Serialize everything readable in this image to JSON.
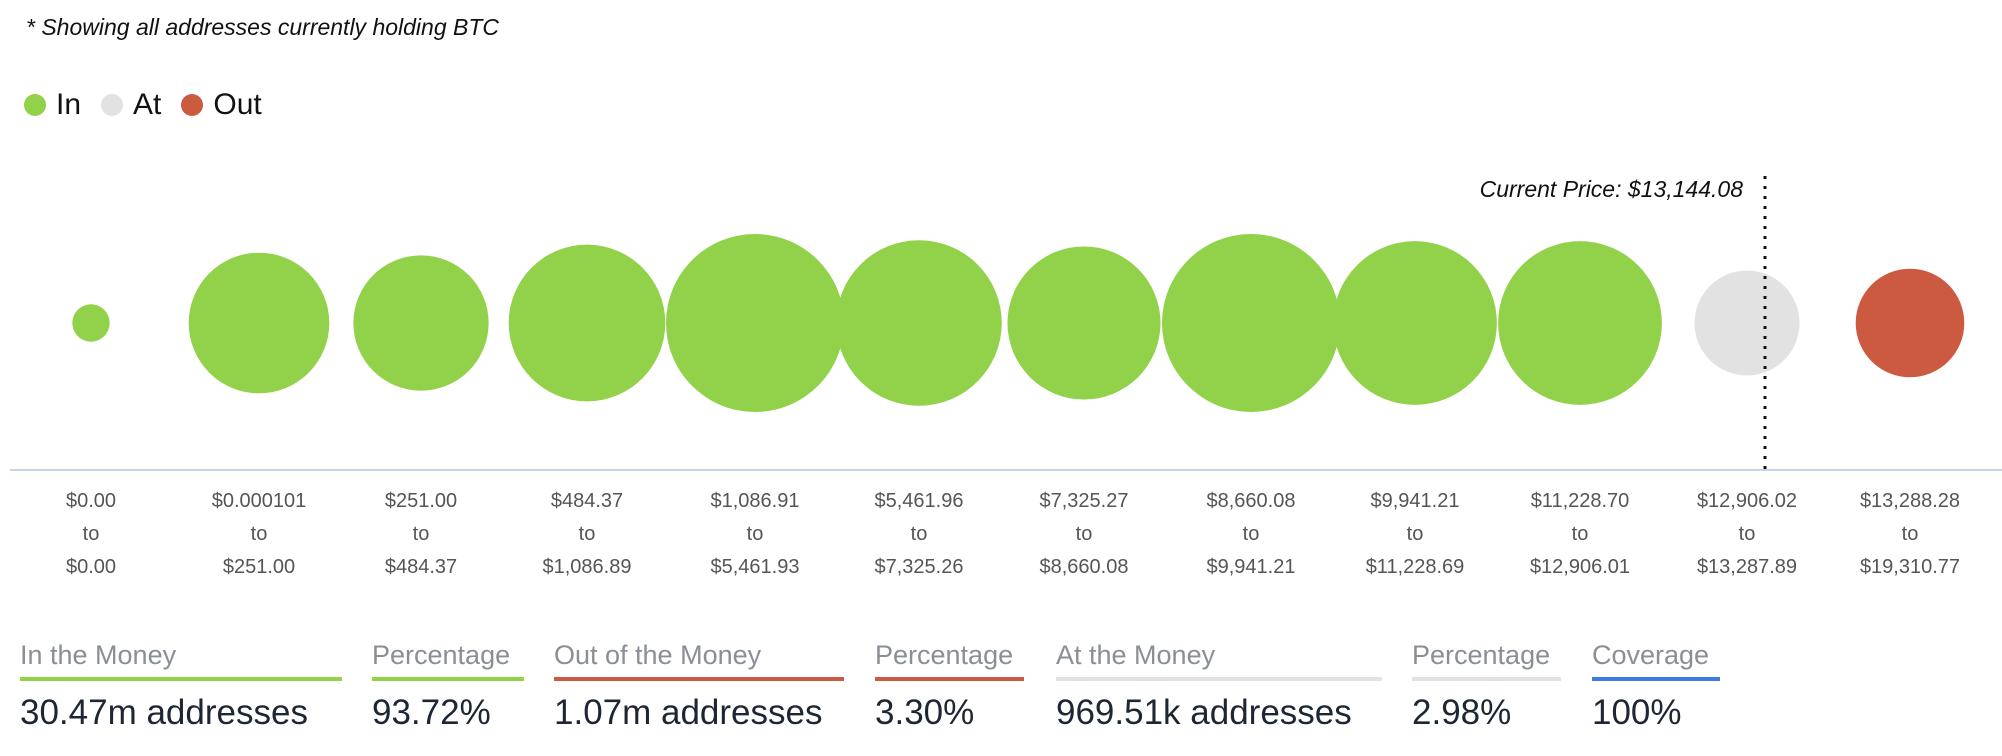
{
  "note": "* Showing all addresses currently holding BTC",
  "legend": [
    {
      "label": "In",
      "color": "#92d14a"
    },
    {
      "label": "At",
      "color": "#e2e2e2"
    },
    {
      "label": "Out",
      "color": "#cc5a41"
    }
  ],
  "chart_data": {
    "type": "bubble",
    "title": "* Showing all addresses currently holding BTC",
    "current_price_label": "Current Price: $13,144.08",
    "current_price": 13144.08,
    "colors": {
      "in": "#92d14a",
      "at": "#e2e2e2",
      "out": "#cc5a41"
    },
    "buckets": [
      {
        "from": "$0.00",
        "to": "$0.00",
        "status": "in",
        "relative_size": 0.21
      },
      {
        "from": "$0.000101",
        "to": "$251.00",
        "status": "in",
        "relative_size": 0.79
      },
      {
        "from": "$251.00",
        "to": "$484.37",
        "status": "in",
        "relative_size": 0.76
      },
      {
        "from": "$484.37",
        "to": "$1,086.89",
        "status": "in",
        "relative_size": 0.88
      },
      {
        "from": "$1,086.91",
        "to": "$5,461.93",
        "status": "in",
        "relative_size": 1.0
      },
      {
        "from": "$5,461.96",
        "to": "$7,325.26",
        "status": "in",
        "relative_size": 0.93
      },
      {
        "from": "$7,325.27",
        "to": "$8,660.08",
        "status": "in",
        "relative_size": 0.86
      },
      {
        "from": "$8,660.08",
        "to": "$9,941.21",
        "status": "in",
        "relative_size": 1.0
      },
      {
        "from": "$9,941.21",
        "to": "$11,228.69",
        "status": "in",
        "relative_size": 0.92
      },
      {
        "from": "$11,228.70",
        "to": "$12,906.01",
        "status": "in",
        "relative_size": 0.92
      },
      {
        "from": "$12,906.02",
        "to": "$13,287.89",
        "status": "at",
        "relative_size": 0.59
      },
      {
        "from": "$13,288.28",
        "to": "$19,310.77",
        "status": "out",
        "relative_size": 0.61
      }
    ],
    "to_word": "to"
  },
  "stats": [
    {
      "header": "In the Money",
      "value": "30.47m addresses",
      "color": "#92d14a"
    },
    {
      "header": "Percentage",
      "value": "93.72%",
      "color": "#92d14a"
    },
    {
      "header": "Out of the Money",
      "value": "1.07m addresses",
      "color": "#cc5a41"
    },
    {
      "header": "Percentage",
      "value": "3.30%",
      "color": "#cc5a41"
    },
    {
      "header": "At the Money",
      "value": "969.51k addresses",
      "color": "#e2e2e2"
    },
    {
      "header": "Percentage",
      "value": "2.98%",
      "color": "#e2e2e2"
    },
    {
      "header": "Coverage",
      "value": "100%",
      "color": "#3f7be6"
    }
  ]
}
